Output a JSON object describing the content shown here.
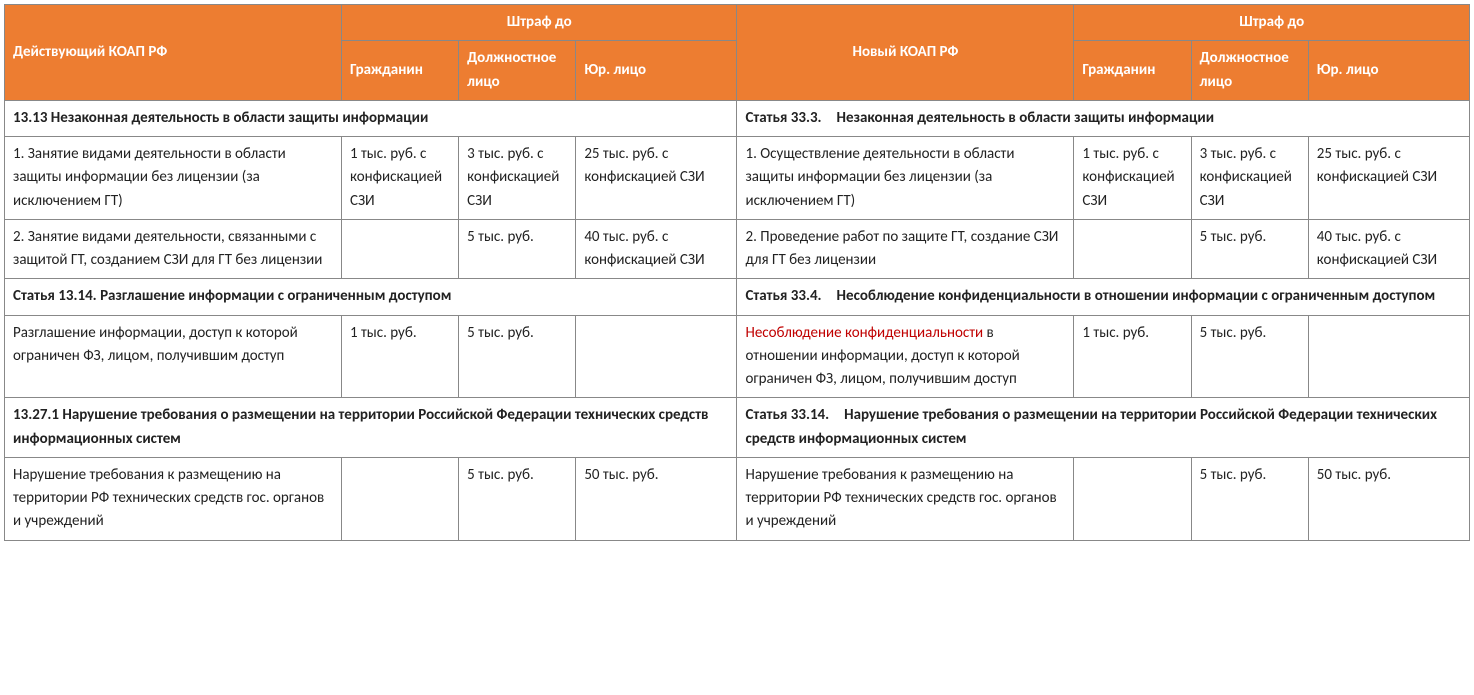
{
  "colors": {
    "header_bg": "#ed7d31",
    "header_fg": "#ffffff",
    "border": "#888888",
    "highlight": "#c00000"
  },
  "header": {
    "left_title": "Действующий КОАП РФ",
    "right_title": "Новый КОАП РФ",
    "fine_caption": "Штраф до",
    "col_citizen": "Гражданин",
    "col_official": "Должностное лицо",
    "col_legal": "Юр. лицо"
  },
  "sections": [
    {
      "left_heading": "13.13 Незаконная деятельность в области защиты информации",
      "right_heading": "Статья 33.3. Незаконная деятельность в области защиты информации",
      "rows": [
        {
          "left_desc": "1.  Занятие видами деятельности в области защиты информации без лицензии (за исключением ГТ)",
          "left_c1": "1 тыс. руб. с конфискацией СЗИ",
          "left_c2": "3 тыс. руб. с конфискацией СЗИ",
          "left_c3": "25 тыс. руб. с конфискацией СЗИ",
          "right_desc": "1.  Осуществление деятельности в области защиты информации без лицензии (за исключением ГТ)",
          "right_c1": "1 тыс. руб. с конфискацией СЗИ",
          "right_c2": "3 тыс. руб. с конфискацией СЗИ",
          "right_c3": "25 тыс. руб. с конфискацией СЗИ"
        },
        {
          "left_desc": "2. Занятие видами деятельности, связанными с защитой ГТ, созданием СЗИ для ГТ без лицензии",
          "left_c1": "",
          "left_c2": "5 тыс. руб.",
          "left_c3": "40 тыс. руб. с конфискацией СЗИ",
          "right_desc": "2. Проведение работ по защите ГТ, создание СЗИ для ГТ без лицензии",
          "right_c1": "",
          "right_c2": "5 тыс. руб.",
          "right_c3": "40 тыс. руб. с конфискацией СЗИ"
        }
      ]
    },
    {
      "left_heading": "Статья 13.14. Разглашение информации с ограниченным доступом",
      "right_heading": "Статья 33.4. Несоблюдение конфиденциальности в отношении информации с ограниченным доступом",
      "rows": [
        {
          "left_desc": "Разглашение информации, доступ к которой ограничен ФЗ, лицом, получившим доступ",
          "left_c1": "1 тыс. руб.",
          "left_c2": "5 тыс. руб.",
          "left_c3": "",
          "right_desc_highlight": "Несоблюдение конфиденциальности",
          "right_desc_rest": " в отношении информации, доступ к которой ограничен ФЗ, лицом, получившим доступ",
          "right_c1": "1 тыс. руб.",
          "right_c2": "5 тыс. руб.",
          "right_c3": ""
        }
      ]
    },
    {
      "left_heading": "13.27.1 Нарушение требования о размещении на территории Российской Федерации технических средств информационных систем",
      "right_heading": "Статья 33.14. Нарушение требования о размещении на территории Российской Федерации технических средств информационных систем",
      "rows": [
        {
          "left_desc": "Нарушение требования к размещению на территории РФ технических средств гос. органов и учреждений",
          "left_c1": "",
          "left_c2": "5 тыс. руб.",
          "left_c3": "50 тыс. руб.",
          "right_desc": "Нарушение требования к размещению на территории РФ технических средств гос. органов и учреждений",
          "right_c1": "",
          "right_c2": "5 тыс. руб.",
          "right_c3": "50 тыс. руб."
        }
      ]
    }
  ]
}
